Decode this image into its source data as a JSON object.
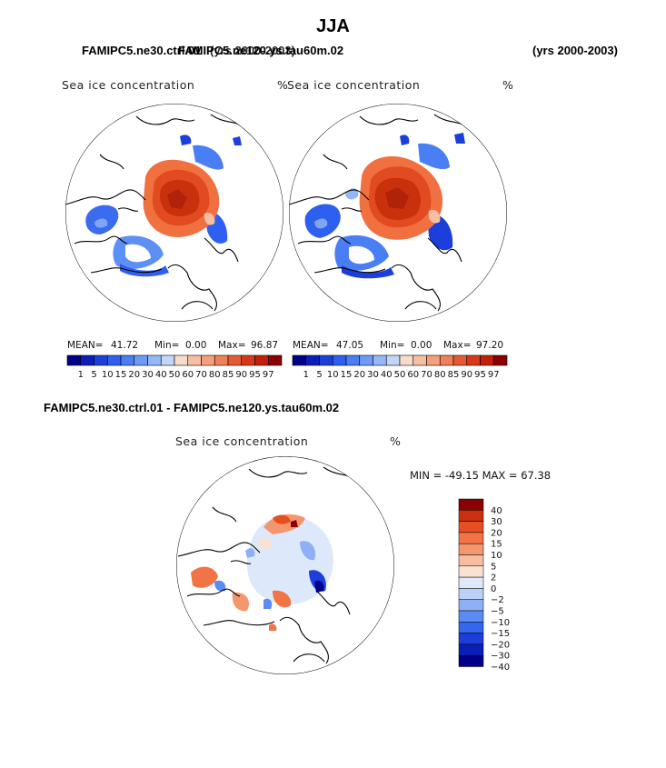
{
  "page": {
    "season": "JJA",
    "header_left_a": "FAMIPC5.ne30.ctrl.01",
    "header_left_b": "FAMIPC5.ne120.ys.tau60m.02",
    "header_years_a": "(yrs 2000-2003)",
    "header_years_b": "(yrs 2000-2003)",
    "diff_title": "FAMIPC5.ne30.ctrl.01 - FAMIPC5.ne120.ys.tau60m.02"
  },
  "colors": {
    "abs_scale": [
      "#00008b",
      "#0a1fb8",
      "#1c3fdb",
      "#2f5ff0",
      "#4a7ef5",
      "#6d9bf7",
      "#94b7f7",
      "#c3d6f7",
      "#f7dccc",
      "#f7bfa2",
      "#f5a07a",
      "#f08055",
      "#e55a32",
      "#d8381a",
      "#c2200a",
      "#8b0000"
    ],
    "diff_scale": [
      "#00008b",
      "#0a1fb8",
      "#1c3fdb",
      "#3566ee",
      "#5b8bf4",
      "#8fb0f5",
      "#bcd1f7",
      "#dde9fa",
      "#fbe1d2",
      "#f8bca0",
      "#f5976e",
      "#f27346",
      "#e54f22",
      "#cc3010",
      "#8b0000"
    ]
  },
  "chart_data": [
    {
      "type": "heatmap",
      "projection": "north-polar-stereographic",
      "panel": "left",
      "title": "Sea ice concentration",
      "units": "%",
      "stats": {
        "mean_label": "MEAN=",
        "mean": "41.72",
        "min_label": "Min=",
        "min": "0.00",
        "max_label": "Max=",
        "max": "96.87"
      },
      "colorbar_levels": [
        "1",
        "5",
        "10",
        "15",
        "20",
        "30",
        "40",
        "50",
        "60",
        "70",
        "80",
        "85",
        "90",
        "95",
        "97"
      ]
    },
    {
      "type": "heatmap",
      "projection": "north-polar-stereographic",
      "panel": "right",
      "title": "Sea ice concentration",
      "units": "%",
      "stats": {
        "mean_label": "MEAN=",
        "mean": "47.05",
        "min_label": "Min=",
        "min": "0.00",
        "max_label": "Max=",
        "max": "97.20"
      },
      "colorbar_levels": [
        "1",
        "5",
        "10",
        "15",
        "20",
        "30",
        "40",
        "50",
        "60",
        "70",
        "80",
        "85",
        "90",
        "95",
        "97"
      ]
    },
    {
      "type": "heatmap",
      "projection": "north-polar-stereographic",
      "panel": "difference",
      "title": "Sea ice concentration",
      "units": "%",
      "minmax_text": "MIN = -49.15 MAX =  67.38",
      "colorbar_levels": [
        "40",
        "30",
        "20",
        "15",
        "10",
        "5",
        "2",
        "0",
        "-2",
        "-5",
        "-10",
        "-15",
        "-20",
        "-30",
        "-40"
      ]
    }
  ]
}
